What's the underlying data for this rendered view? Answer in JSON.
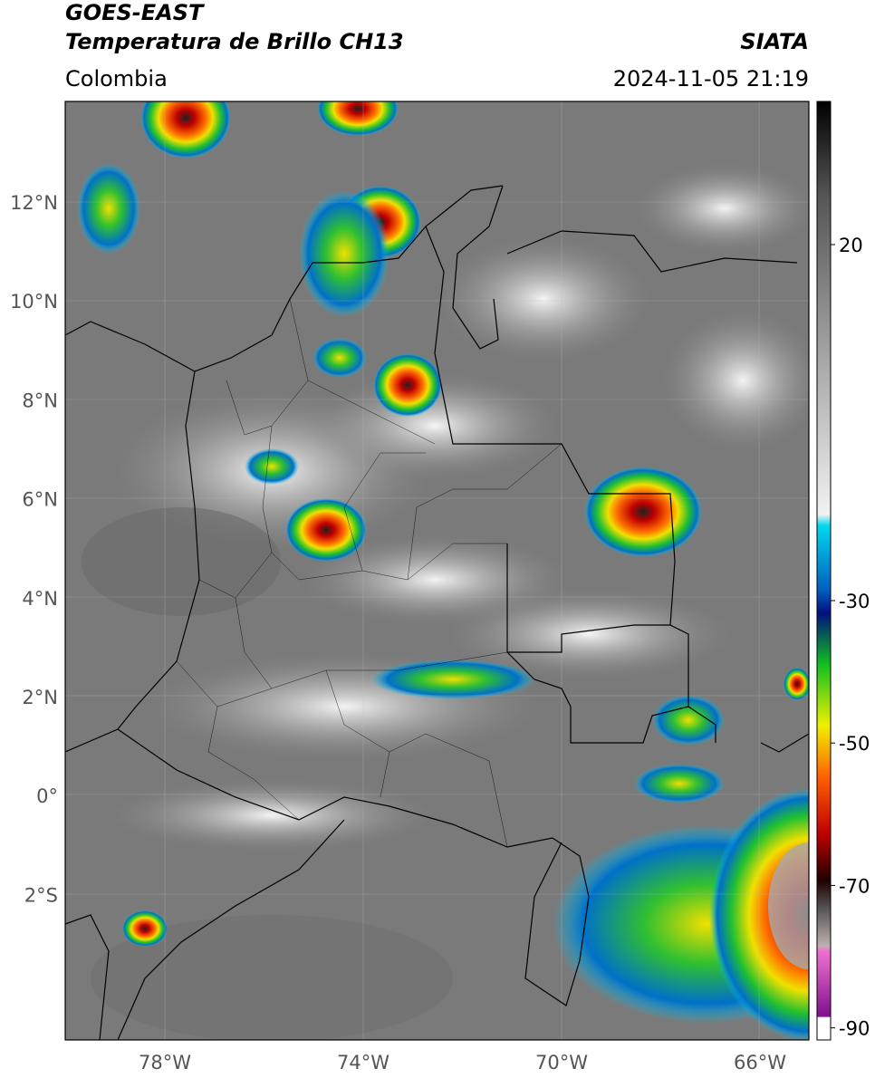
{
  "header": {
    "title": "GOES-EAST",
    "subtitle": "Temperatura de Brillo CH13",
    "region": "Colombia",
    "source": "SIATA",
    "datetime": "2024-11-05 21:19"
  },
  "map": {
    "lat_labels": [
      "12°N",
      "10°N",
      "8°N",
      "6°N",
      "4°N",
      "2°N",
      "0°",
      "2°S"
    ],
    "lon_labels": [
      "78°W",
      "74°W",
      "70°W",
      "66°W"
    ]
  },
  "colorbar": {
    "lim": [
      -91.7,
      40.1
    ],
    "ticks": [
      20,
      -30,
      -50,
      -70,
      -90
    ]
  }
}
